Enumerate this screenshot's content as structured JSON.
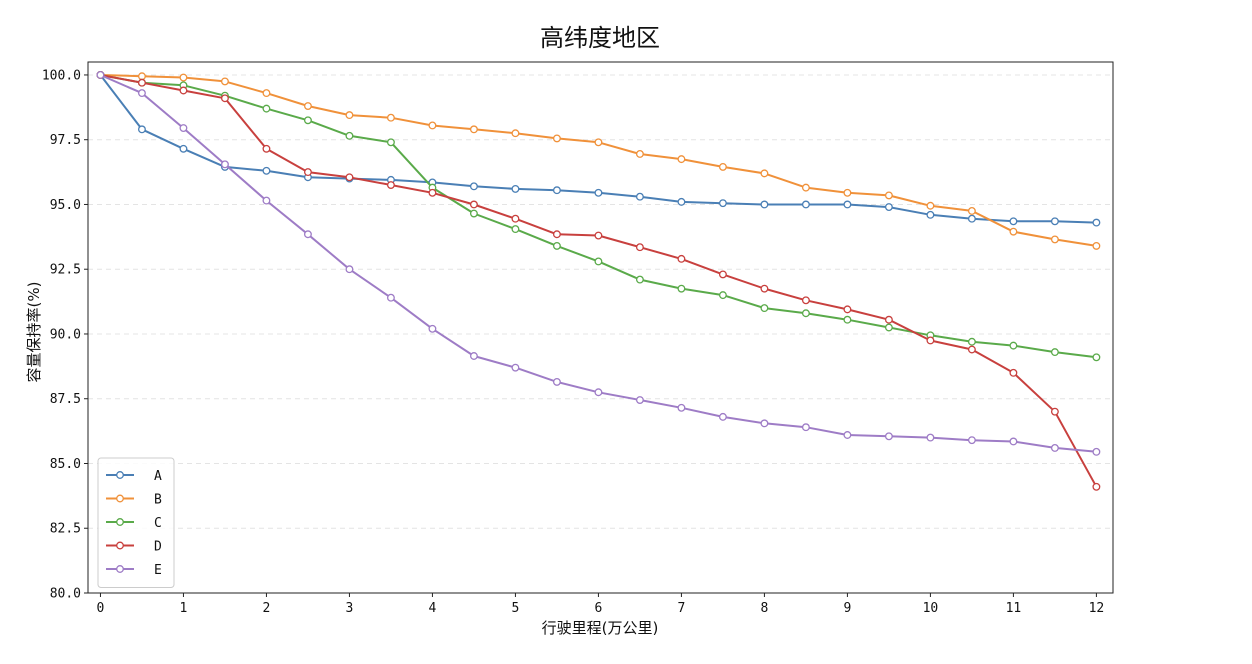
{
  "chart_data": {
    "type": "line",
    "title": "高纬度地区",
    "xlabel": "行驶里程(万公里)",
    "ylabel": "容量保持率(%)",
    "xlim": [
      -0.15,
      12.2
    ],
    "ylim": [
      80.0,
      100.5
    ],
    "xticks": [
      0,
      1,
      2,
      3,
      4,
      5,
      6,
      7,
      8,
      9,
      10,
      11,
      12
    ],
    "yticks": [
      80.0,
      82.5,
      85.0,
      87.5,
      90.0,
      92.5,
      95.0,
      97.5,
      100.0
    ],
    "grid": "horizontal-dashed",
    "legend_position": "lower-left",
    "x": [
      0,
      0.5,
      1,
      1.5,
      2,
      2.5,
      3,
      3.5,
      4,
      4.5,
      5,
      5.5,
      6,
      6.5,
      7,
      7.5,
      8,
      8.5,
      9,
      9.5,
      10,
      10.5,
      11,
      11.5,
      12
    ],
    "series": [
      {
        "name": "A",
        "color": "#4a7fb5",
        "values": [
          100.0,
          97.9,
          97.15,
          96.45,
          96.3,
          96.05,
          96.0,
          95.95,
          95.85,
          95.7,
          95.6,
          95.55,
          95.45,
          95.3,
          95.1,
          95.05,
          95.0,
          95.0,
          95.0,
          94.9,
          94.6,
          94.45,
          94.35,
          94.35,
          94.3
        ]
      },
      {
        "name": "B",
        "color": "#f0913a",
        "values": [
          100.0,
          99.95,
          99.9,
          99.75,
          99.3,
          98.8,
          98.45,
          98.35,
          98.05,
          97.9,
          97.75,
          97.55,
          97.4,
          96.95,
          96.75,
          96.45,
          96.2,
          95.65,
          95.45,
          95.35,
          94.95,
          94.75,
          93.95,
          93.65,
          93.4
        ]
      },
      {
        "name": "C",
        "color": "#5aaa4a",
        "values": [
          100.0,
          99.7,
          99.6,
          99.2,
          98.7,
          98.25,
          97.65,
          97.4,
          95.65,
          94.65,
          94.05,
          93.4,
          92.8,
          92.1,
          91.75,
          91.5,
          91.0,
          90.8,
          90.55,
          90.25,
          89.95,
          89.7,
          89.55,
          89.3,
          89.1
        ]
      },
      {
        "name": "D",
        "color": "#c8403e",
        "values": [
          100.0,
          99.7,
          99.4,
          99.1,
          97.15,
          96.25,
          96.05,
          95.75,
          95.45,
          95.0,
          94.45,
          93.85,
          93.8,
          93.35,
          92.9,
          92.3,
          91.75,
          91.3,
          90.95,
          90.55,
          89.75,
          89.4,
          88.5,
          87.0,
          84.1
        ]
      },
      {
        "name": "E",
        "color": "#9e7cc6",
        "values": [
          100.0,
          99.3,
          97.95,
          96.55,
          95.15,
          93.85,
          92.5,
          91.4,
          90.2,
          89.15,
          88.7,
          88.15,
          87.75,
          87.45,
          87.15,
          86.8,
          86.55,
          86.4,
          86.1,
          86.05,
          86.0,
          85.9,
          85.85,
          85.6,
          85.45
        ]
      }
    ]
  }
}
